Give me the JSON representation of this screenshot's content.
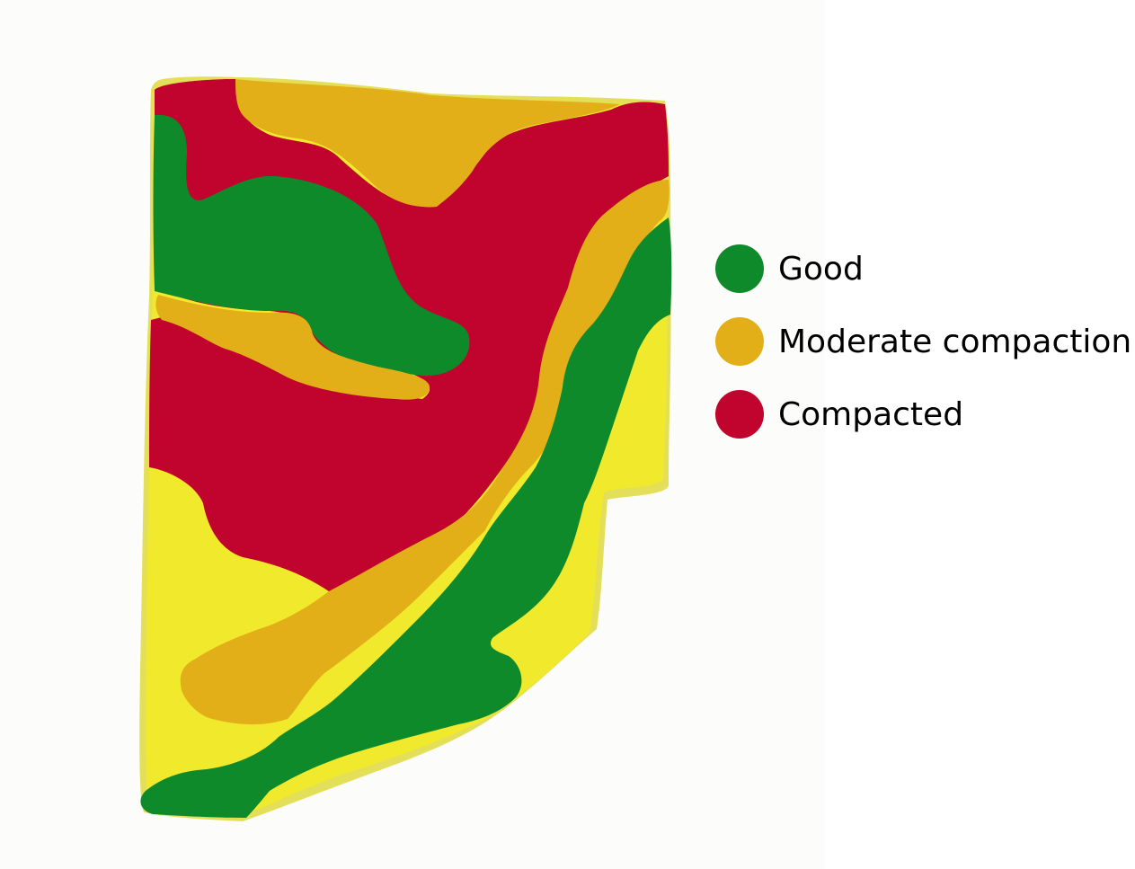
{
  "map": {
    "zones": [
      {
        "id": "outer",
        "color": "#e4df58"
      },
      {
        "id": "field",
        "color": "#f1e92c"
      },
      {
        "id": "good",
        "color": "#0e8a2b"
      },
      {
        "id": "moderate",
        "color": "#e2af18"
      },
      {
        "id": "compacted",
        "color": "#c0042d"
      }
    ]
  },
  "legend": {
    "items": [
      {
        "label": "Good",
        "color": "#0e8a2b"
      },
      {
        "label": "Moderate compaction",
        "color": "#e2af18"
      },
      {
        "label": "Compacted",
        "color": "#c0042d"
      }
    ]
  }
}
